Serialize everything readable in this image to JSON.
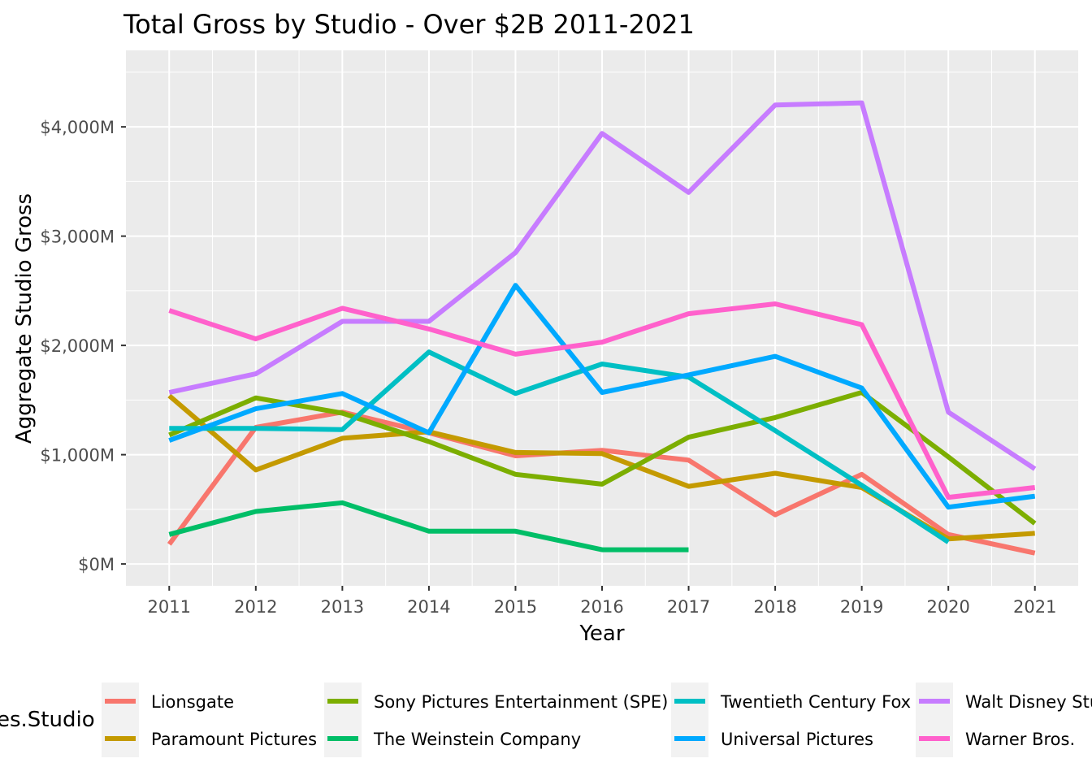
{
  "chart_data": {
    "type": "line",
    "title": "Total Gross by Studio - Over $2B 2011-2021",
    "xlabel": "Year",
    "ylabel": "Aggregate Studio Gross",
    "x": [
      2011,
      2012,
      2013,
      2014,
      2015,
      2016,
      2017,
      2018,
      2019,
      2020,
      2021
    ],
    "x_tick_labels": [
      "2011",
      "2012",
      "2013",
      "2014",
      "2015",
      "2016",
      "2017",
      "2018",
      "2019",
      "2020",
      "2021"
    ],
    "y_ticks": [
      0,
      1000,
      2000,
      3000,
      4000
    ],
    "y_tick_labels": [
      "$0M",
      "$1,000M",
      "$2,000M",
      "$3,000M",
      "$4,000M"
    ],
    "ylim": [
      -200,
      4700
    ],
    "grid": true,
    "legend_title": "es.Studio",
    "legend_position": "bottom",
    "series": [
      {
        "name": "Lionsgate",
        "color": "#F8766D",
        "values": [
          180,
          1250,
          1390,
          1200,
          990,
          1040,
          950,
          450,
          820,
          270,
          100
        ]
      },
      {
        "name": "Paramount Pictures",
        "color": "#C49A00",
        "values": [
          1540,
          860,
          1150,
          1210,
          1020,
          1010,
          710,
          830,
          700,
          230,
          280
        ]
      },
      {
        "name": "Sony Pictures Entertainment (SPE)",
        "color": "#7CAE00",
        "values": [
          1180,
          1520,
          1380,
          1120,
          820,
          730,
          1160,
          1340,
          1570,
          980,
          370
        ]
      },
      {
        "name": "The Weinstein Company",
        "color": "#00BE67",
        "values": [
          270,
          480,
          560,
          300,
          300,
          130,
          130,
          null,
          null,
          null,
          null
        ]
      },
      {
        "name": "Twentieth Century Fox",
        "color": "#00BFC4",
        "values": [
          1240,
          1240,
          1230,
          1940,
          1560,
          1830,
          1710,
          1220,
          720,
          200,
          null
        ]
      },
      {
        "name": "Universal Pictures",
        "color": "#00A9FF",
        "values": [
          1130,
          1420,
          1560,
          1200,
          2550,
          1570,
          1730,
          1900,
          1610,
          520,
          620
        ]
      },
      {
        "name": "Walt Disney Stu",
        "color": "#C77CFF",
        "values": [
          1570,
          1740,
          2220,
          2220,
          2850,
          3940,
          3400,
          4200,
          4220,
          1390,
          870
        ]
      },
      {
        "name": "Warner Bros.",
        "color": "#FF61CC",
        "values": [
          2320,
          2060,
          2340,
          2150,
          1920,
          2030,
          2290,
          2380,
          2190,
          610,
          700
        ]
      }
    ]
  }
}
